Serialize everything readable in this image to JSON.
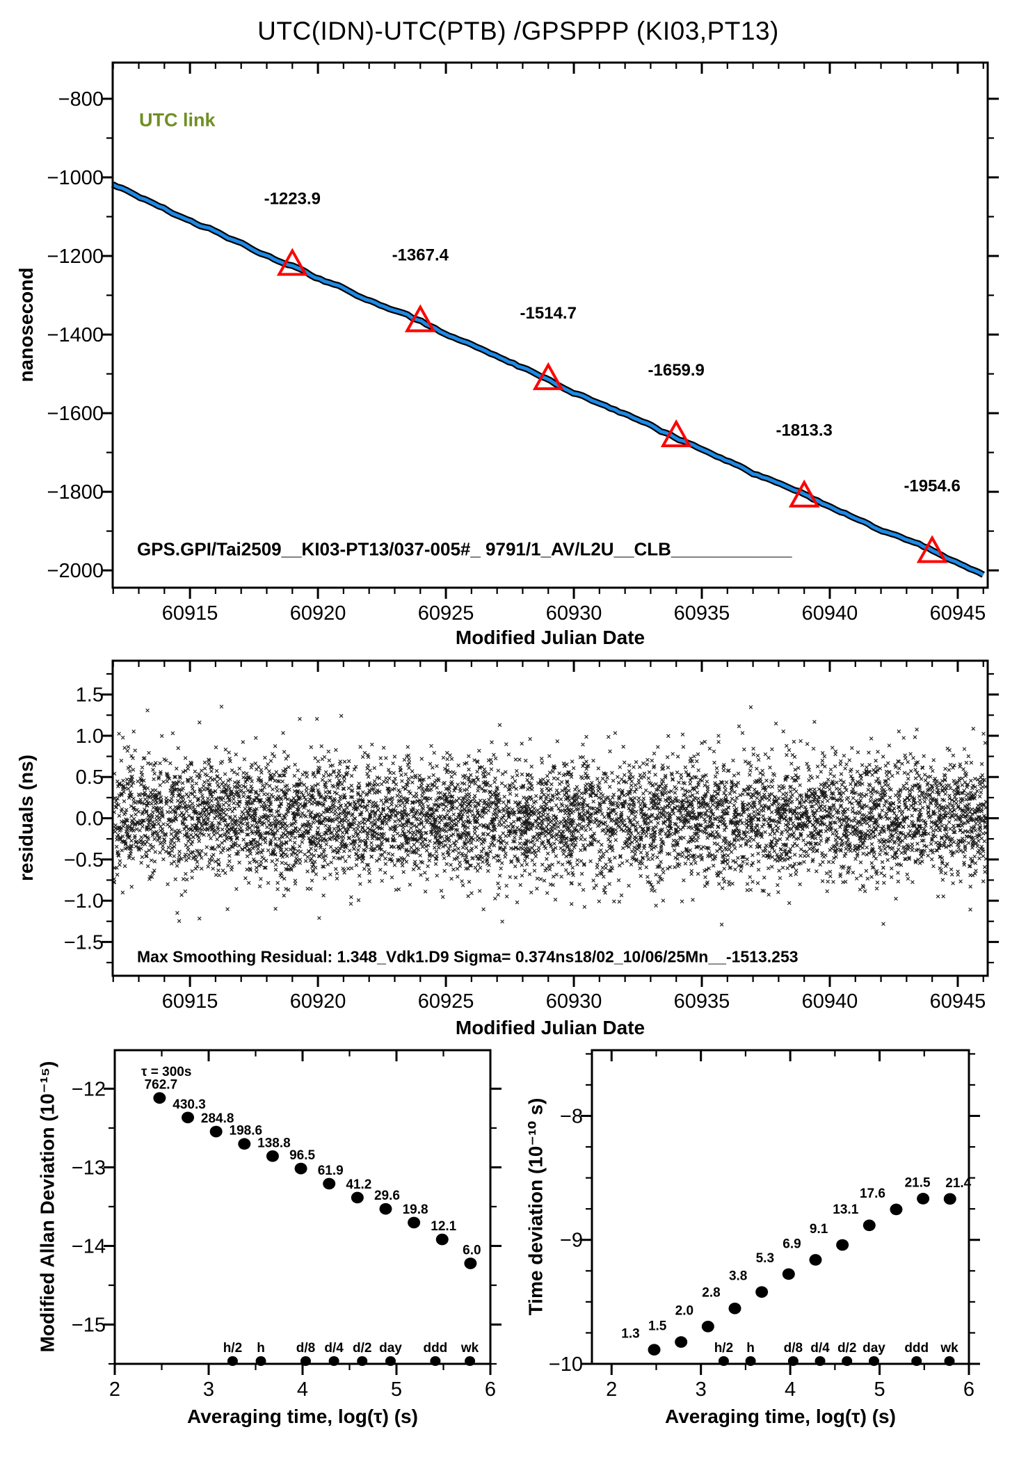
{
  "title": "UTC(IDN)-UTC(PTB)  /GPSPPP  (KI03,PT13)",
  "colors": {
    "line_blue": "#1e8ae6",
    "accent_red": "#ff0000",
    "utc_link_olive": "#6f8f23",
    "axis_black": "#000000",
    "scatter_black": "#1a1a1a"
  },
  "chart_data": {
    "type": "multi-panel-time-transfer",
    "panels": [
      {
        "id": "utc-link-line",
        "type": "line",
        "legend": "UTC link",
        "ylabel": "nanosecond",
        "xlabel": "Modified Julian Date",
        "xlim": [
          60911.98,
          60946.17
        ],
        "ylim": [
          -2044,
          -708
        ],
        "xticks": [
          60915,
          60920,
          60925,
          60930,
          60935,
          60940,
          60945
        ],
        "yticks": [
          -800,
          -1000,
          -1200,
          -1400,
          -1600,
          -1800,
          -2000
        ],
        "x_minor_step": 1,
        "y_minor_step": 100,
        "line": {
          "start_mjd": 60911.98,
          "start_ns": -1019,
          "end_mjd": 60946.17,
          "end_ns": -2018
        },
        "markers": [
          {
            "mjd": 60919,
            "ns": -1223.9,
            "label": "-1223.9"
          },
          {
            "mjd": 60924,
            "ns": -1367.4,
            "label": "-1367.4"
          },
          {
            "mjd": 60929,
            "ns": -1514.7,
            "label": "-1514.7"
          },
          {
            "mjd": 60934,
            "ns": -1659.9,
            "label": "-1659.9"
          },
          {
            "mjd": 60939,
            "ns": -1813.3,
            "label": "-1813.3"
          },
          {
            "mjd": 60944,
            "ns": -1954.6,
            "label": "-1954.6"
          }
        ],
        "annotation": "GPS.GPI/Tai2509__KI03-PT13/037-005#_  9791/1_AV/L2U__CLB____________"
      },
      {
        "id": "residuals",
        "type": "scatter",
        "ylabel": "residuals (ns)",
        "xlabel": "Modified Julian Date",
        "xlim": [
          60911.98,
          60946.17
        ],
        "ylim": [
          -1.91,
          1.91
        ],
        "xticks": [
          60915,
          60920,
          60925,
          60930,
          60935,
          60940,
          60945
        ],
        "yticks": [
          1.5,
          1.0,
          0.5,
          0.0,
          -0.5,
          -1.0,
          -1.5
        ],
        "x_minor_step": 1,
        "y_minor_step": 0.25,
        "y_tick_decimals": 1,
        "sigma_ns": 0.374,
        "n_points": 6500,
        "annotation": "Max Smoothing Residual: 1.348_Vdk1.D9  Sigma= 0.374ns18/02_10/06/25Mn__-1513.253"
      },
      {
        "id": "mdev",
        "type": "scatter-log",
        "ylabel": "Modified Allan Deviation (10⁻¹⁵)",
        "xlabel": "Averaging time, log(τ) (s)",
        "tau_note": "τ = 300s",
        "unit_exp": -15,
        "xlim": [
          2.0,
          6.0
        ],
        "ylim": [
          -15.5,
          -11.51
        ],
        "xticks": [
          2,
          3,
          4,
          5,
          6
        ],
        "yticks": [
          -12,
          -13,
          -14,
          -15
        ],
        "x_minor_step": 0.5,
        "y_minor_step": 0.5,
        "points": [
          {
            "log_tau": 2.477,
            "value": 762.7,
            "label": "762.7"
          },
          {
            "log_tau": 2.778,
            "value": 430.3,
            "label": "430.3"
          },
          {
            "log_tau": 3.079,
            "value": 284.8,
            "label": "284.8"
          },
          {
            "log_tau": 3.38,
            "value": 198.6,
            "label": "198.6"
          },
          {
            "log_tau": 3.681,
            "value": 138.8,
            "label": "138.8"
          },
          {
            "log_tau": 3.982,
            "value": 96.5,
            "label": "96.5"
          },
          {
            "log_tau": 4.283,
            "value": 61.9,
            "label": "61.9"
          },
          {
            "log_tau": 4.584,
            "value": 41.2,
            "label": "41.2"
          },
          {
            "log_tau": 4.885,
            "value": 29.6,
            "label": "29.6"
          },
          {
            "log_tau": 5.186,
            "value": 19.8,
            "label": "19.8"
          },
          {
            "log_tau": 5.487,
            "value": 12.1,
            "label": "12.1"
          },
          {
            "log_tau": 5.788,
            "value": 6.0,
            "label": "6.0"
          }
        ],
        "time_markers": [
          {
            "label": "h/2",
            "log_tau": 3.255
          },
          {
            "label": "h",
            "log_tau": 3.556
          },
          {
            "label": "d/8",
            "log_tau": 4.033
          },
          {
            "label": "d/4",
            "log_tau": 4.334
          },
          {
            "label": "d/2",
            "log_tau": 4.635
          },
          {
            "label": "day",
            "log_tau": 4.937
          },
          {
            "label": "ddd",
            "log_tau": 5.414
          },
          {
            "label": "wk",
            "log_tau": 5.782
          }
        ]
      },
      {
        "id": "tdev",
        "type": "scatter-log",
        "ylabel": "Time deviation (10⁻¹⁰ s)",
        "xlabel": "Averaging time, log(τ) (s)",
        "unit_exp": -10,
        "xlim": [
          1.78,
          6.0
        ],
        "ylim": [
          -10.0,
          -7.47
        ],
        "xticks": [
          2,
          3,
          4,
          5,
          6
        ],
        "yticks": [
          -8,
          -9,
          -10
        ],
        "x_minor_step": 0.5,
        "y_minor_step": 0.25,
        "points": [
          {
            "log_tau": 2.477,
            "value": 1.3,
            "label": "1.3"
          },
          {
            "log_tau": 2.778,
            "value": 1.5,
            "label": "1.5"
          },
          {
            "log_tau": 3.079,
            "value": 2.0,
            "label": "2.0"
          },
          {
            "log_tau": 3.38,
            "value": 2.8,
            "label": "2.8"
          },
          {
            "log_tau": 3.681,
            "value": 3.8,
            "label": "3.8"
          },
          {
            "log_tau": 3.982,
            "value": 5.3,
            "label": "5.3"
          },
          {
            "log_tau": 4.283,
            "value": 6.9,
            "label": "6.9"
          },
          {
            "log_tau": 4.584,
            "value": 9.1,
            "label": "9.1"
          },
          {
            "log_tau": 4.885,
            "value": 13.1,
            "label": "13.1"
          },
          {
            "log_tau": 5.186,
            "value": 17.6,
            "label": "17.6"
          },
          {
            "log_tau": 5.487,
            "value": 21.5,
            "label": "21.5"
          },
          {
            "log_tau": 5.788,
            "value": 21.4,
            "label": "21.4"
          }
        ],
        "time_markers": [
          {
            "label": "h/2",
            "log_tau": 3.255
          },
          {
            "label": "h",
            "log_tau": 3.556
          },
          {
            "label": "d/8",
            "log_tau": 4.033
          },
          {
            "label": "d/4",
            "log_tau": 4.334
          },
          {
            "label": "d/2",
            "log_tau": 4.635
          },
          {
            "label": "day",
            "log_tau": 4.937
          },
          {
            "label": "ddd",
            "log_tau": 5.414
          },
          {
            "label": "wk",
            "log_tau": 5.782
          }
        ]
      }
    ]
  }
}
